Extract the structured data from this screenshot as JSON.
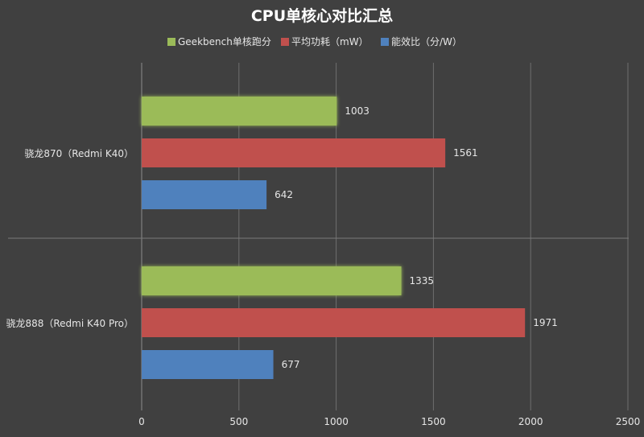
{
  "chart_data": {
    "type": "bar",
    "orientation": "horizontal",
    "title": "CPU单核心对比汇总",
    "categories": [
      "骁龙870（Redmi K40）",
      "骁龙888（Redmi K40 Pro）"
    ],
    "series": [
      {
        "name": "Geekbench单核跑分",
        "values": [
          1003,
          1335
        ],
        "color": "#9BBB59"
      },
      {
        "name": "平均功耗（mW）",
        "values": [
          1561,
          1971
        ],
        "color": "#C0504D"
      },
      {
        "name": "能效比（分/W）",
        "values": [
          642,
          677
        ],
        "color": "#4F81BD"
      }
    ],
    "x_ticks": [
      "0",
      "500",
      "1000",
      "1500",
      "2000",
      "2500"
    ],
    "xlim": [
      0,
      2500
    ],
    "legend_position": "top",
    "grid": true,
    "background_color": "#404040",
    "text_color": "#FFFFFF"
  }
}
